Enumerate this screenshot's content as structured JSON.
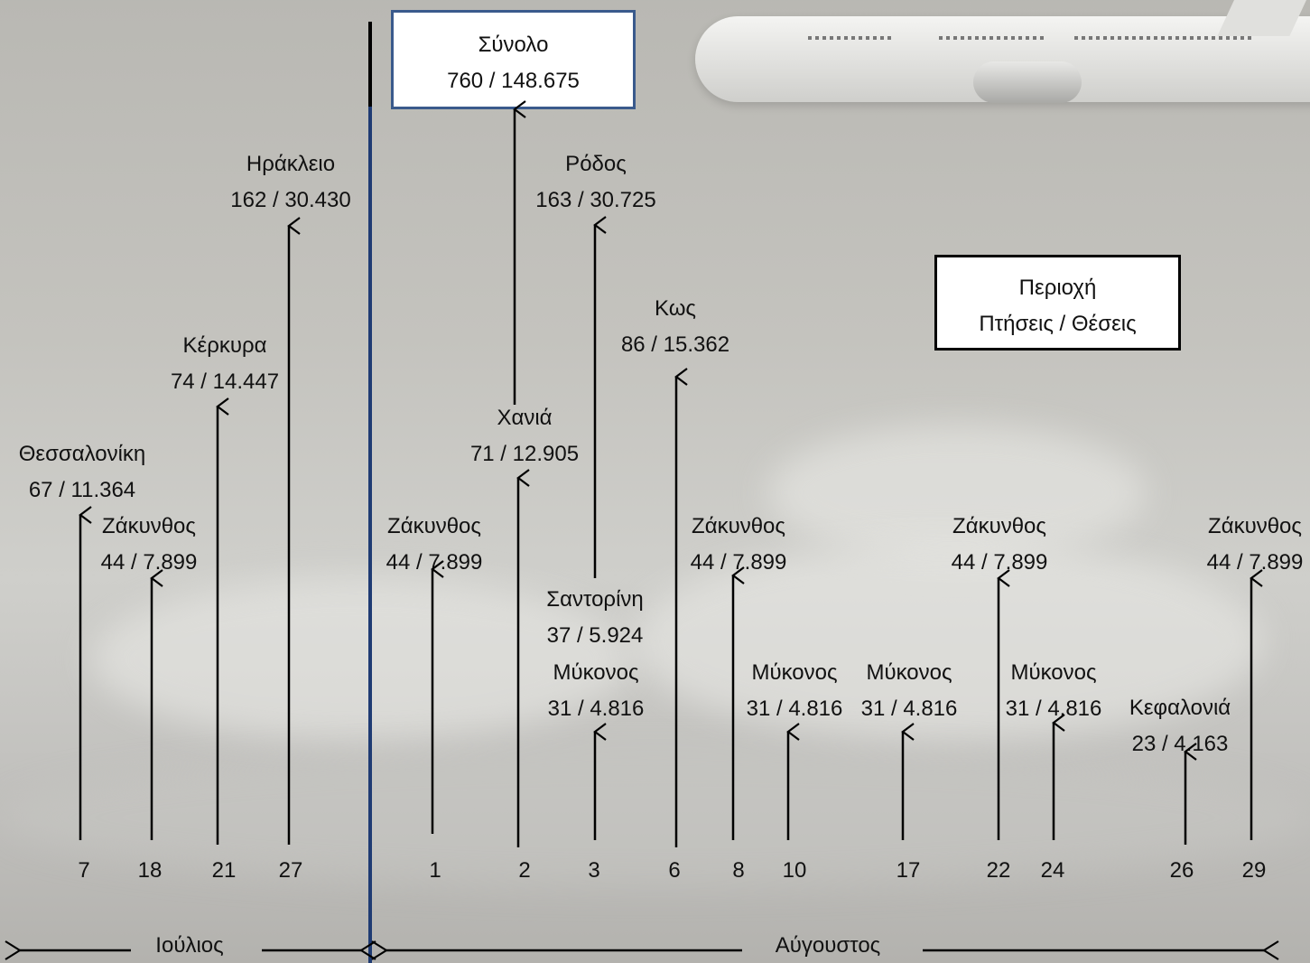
{
  "flights": [
    {
      "day": "7",
      "city": "Θεσσαλονίκη",
      "value": "67 / 11.364"
    },
    {
      "day": "18",
      "city": "Ζάκυνθος",
      "value": "44 / 7.899"
    },
    {
      "day": "21",
      "city": "Κέρκυρα",
      "value": "74 / 14.447"
    },
    {
      "day": "27",
      "city": "Ηράκλειο",
      "value": "162 / 30.430"
    },
    {
      "day": "1",
      "city": "Ζάκυνθος",
      "value": "44 / 7.899"
    },
    {
      "day": "2",
      "city": "Χανιά",
      "value": "71 / 12.905"
    },
    {
      "day": "3",
      "city": "Ρόδος",
      "value": "163 / 30.725"
    },
    {
      "day": "3",
      "city": "Σαντορίνη",
      "value": "37 / 5.924"
    },
    {
      "day": "3",
      "city": "Μύκονος",
      "value": "31 / 4.816"
    },
    {
      "day": "6",
      "city": "Κως",
      "value": "86 / 15.362"
    },
    {
      "day": "8",
      "city": "Ζάκυνθος",
      "value": "44 / 7.899"
    },
    {
      "day": "10",
      "city": "Μύκονος",
      "value": "31 / 4.816"
    },
    {
      "day": "17",
      "city": "Μύκονος",
      "value": "31 / 4.816"
    },
    {
      "day": "22",
      "city": "Ζάκυνθος",
      "value": "44 / 7.899"
    },
    {
      "day": "24",
      "city": "Μύκονος",
      "value": "31 / 4.816"
    },
    {
      "day": "26",
      "city": "Κεφαλονιά",
      "value": "23 / 4.163"
    },
    {
      "day": "29",
      "city": "Ζάκυνθος",
      "value": "44 / 7.899"
    }
  ],
  "total": {
    "title": "Σύνολο",
    "value": "760 / 148.675"
  },
  "legend": {
    "line1": "Περιοχή",
    "line2": "Πτήσεις / Θέσεις"
  },
  "months": {
    "july": "Ιούλιος",
    "august": "Αύγουστος"
  },
  "colors": {
    "divider": "#1f3b73",
    "box_border_total": "#3a5a8c",
    "arrow": "#000000"
  }
}
